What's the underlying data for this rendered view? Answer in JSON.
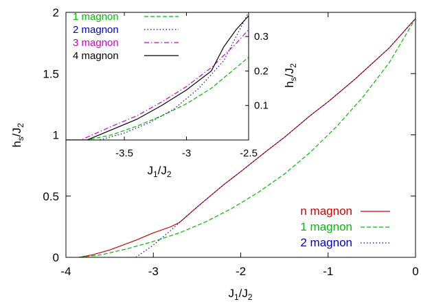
{
  "chart_data": [
    {
      "type": "line",
      "xlabel_main": "J",
      "xlabel_sub": "1",
      "xlabel_slash": "/J",
      "xlabel_sub2": "2",
      "ylabel_main": "h",
      "ylabel_sub": "s",
      "ylabel_slash": "/J",
      "ylabel_sub2": "2",
      "xlim": [
        -4,
        0
      ],
      "ylim": [
        0,
        2
      ],
      "xticks": [
        -4,
        -3,
        -2,
        -1,
        0
      ],
      "xtick_labels": [
        "-4",
        "-3",
        "-2",
        "-1",
        "0"
      ],
      "yticks": [
        0,
        0.5,
        1,
        1.5,
        2
      ],
      "ytick_labels": [
        "0",
        "0.5",
        "1",
        "1.5",
        "2"
      ],
      "legend_position": "bottom-right",
      "series": [
        {
          "name": "n magnon",
          "color": "#cc0000",
          "dash": "solid",
          "x": [
            -3.85,
            -3.7,
            -3.5,
            -3.2,
            -3.0,
            -2.8,
            -2.7,
            -2.5,
            -2.2,
            -2.0,
            -1.7,
            -1.5,
            -1.2,
            -1.0,
            -0.7,
            -0.5,
            -0.3,
            0
          ],
          "y": [
            0,
            0.02,
            0.06,
            0.14,
            0.2,
            0.25,
            0.285,
            0.41,
            0.59,
            0.7,
            0.87,
            0.98,
            1.16,
            1.27,
            1.45,
            1.58,
            1.71,
            1.95
          ]
        },
        {
          "name": "1 magnon",
          "color": "#00bb00",
          "dash": "dashed",
          "x": [
            -3.85,
            -3.6,
            -3.3,
            -3.0,
            -2.7,
            -2.4,
            -2.1,
            -1.8,
            -1.5,
            -1.2,
            -0.9,
            -0.6,
            -0.3,
            0
          ],
          "y": [
            0,
            0.02,
            0.07,
            0.13,
            0.2,
            0.29,
            0.4,
            0.53,
            0.68,
            0.86,
            1.07,
            1.31,
            1.59,
            1.95
          ]
        },
        {
          "name": "2 magnon",
          "color": "#0000cc",
          "dash": "dotted",
          "x": [
            -3.2,
            -3.1,
            -3.0,
            -2.9,
            -2.8,
            -2.7,
            -2.5,
            -2.2,
            -2.0,
            -1.7,
            -1.5,
            -1.2,
            -1.0,
            -0.7,
            -0.5,
            -0.3,
            0
          ],
          "y": [
            0,
            0.05,
            0.1,
            0.16,
            0.22,
            0.285,
            0.41,
            0.59,
            0.7,
            0.87,
            0.98,
            1.16,
            1.27,
            1.45,
            1.58,
            1.71,
            1.95
          ]
        }
      ]
    },
    {
      "type": "line",
      "xlabel_main": "J",
      "xlabel_sub": "1",
      "xlabel_slash": "/J",
      "xlabel_sub2": "2",
      "ylabel_main": "h",
      "ylabel_sub": "s",
      "ylabel_slash": "/J",
      "ylabel_sub2": "2",
      "xlim": [
        -3.97,
        -2.5
      ],
      "ylim": [
        0,
        0.37
      ],
      "xticks": [
        -3.5,
        -3,
        -2.5
      ],
      "xtick_labels": [
        "-3.5",
        "-3",
        "-2.5"
      ],
      "yticks": [
        0.1,
        0.2,
        0.3
      ],
      "ytick_labels": [
        "0.1",
        "0.2",
        "0.3"
      ],
      "legend_position": "top-left",
      "series": [
        {
          "name": "1 magnon",
          "color": "#00bb00",
          "dash": "dashed",
          "x": [
            -3.97,
            -3.8,
            -3.6,
            -3.4,
            -3.2,
            -3.0,
            -2.8,
            -2.6,
            -2.5
          ],
          "y": [
            0,
            0.0,
            0.015,
            0.04,
            0.07,
            0.105,
            0.15,
            0.21,
            0.24
          ]
        },
        {
          "name": "2 magnon",
          "color": "#0000cc",
          "dash": "dotted",
          "x": [
            -3.97,
            -3.7,
            -3.5,
            -3.3,
            -3.1,
            -2.9,
            -2.7,
            -2.5
          ],
          "y": [
            0,
            0.0,
            0.02,
            0.05,
            0.09,
            0.15,
            0.23,
            0.37
          ]
        },
        {
          "name": "3 magnon",
          "color": "#cc00cc",
          "dash": "dashdot",
          "x": [
            -3.97,
            -3.85,
            -3.6,
            -3.4,
            -3.2,
            -3.0,
            -2.8,
            -2.6,
            -2.5
          ],
          "y": [
            0,
            0.0,
            0.04,
            0.07,
            0.11,
            0.155,
            0.21,
            0.28,
            0.32
          ]
        },
        {
          "name": "4 magnon",
          "color": "#000000",
          "dash": "solid",
          "x": [
            -3.97,
            -3.8,
            -3.6,
            -3.4,
            -3.2,
            -3.0,
            -2.8,
            -2.7,
            -2.6,
            -2.5
          ],
          "y": [
            0,
            0.0,
            0.03,
            0.06,
            0.1,
            0.145,
            0.2,
            0.27,
            0.32,
            0.36
          ]
        }
      ]
    }
  ]
}
